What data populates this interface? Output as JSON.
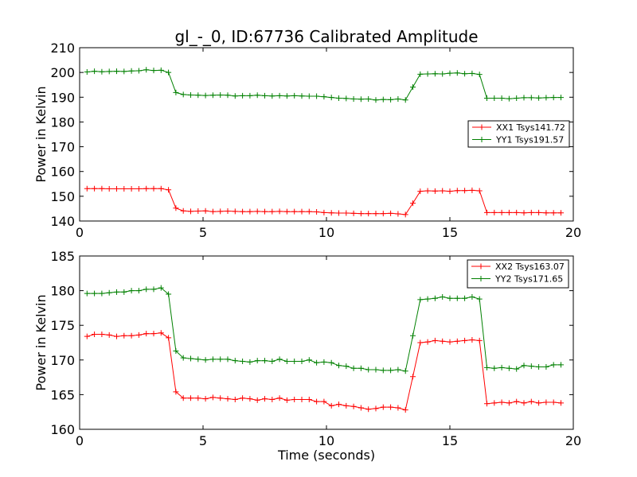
{
  "chart_data": [
    {
      "type": "line",
      "title": "gl_-_0, ID:67736 Calibrated Amplitude",
      "xlabel": "",
      "ylabel": "Power in Kelvin",
      "xlim": [
        0,
        20
      ],
      "ylim": [
        140,
        210
      ],
      "xticks": [
        "0",
        "5",
        "10",
        "15",
        "20"
      ],
      "yticks": [
        "140",
        "150",
        "160",
        "170",
        "180",
        "190",
        "200",
        "210"
      ],
      "grid": false,
      "legend_position": "right",
      "x": [
        0.3,
        0.6,
        0.9,
        1.2,
        1.5,
        1.8,
        2.1,
        2.4,
        2.7,
        3.0,
        3.3,
        3.6,
        3.9,
        4.2,
        4.5,
        4.8,
        5.1,
        5.4,
        5.7,
        6.0,
        6.3,
        6.6,
        6.9,
        7.2,
        7.5,
        7.8,
        8.1,
        8.4,
        8.7,
        9.0,
        9.3,
        9.6,
        9.9,
        10.2,
        10.5,
        10.8,
        11.1,
        11.4,
        11.7,
        12.0,
        12.3,
        12.6,
        12.9,
        13.2,
        13.5,
        13.8,
        14.1,
        14.4,
        14.7,
        15.0,
        15.3,
        15.6,
        15.9,
        16.2,
        16.5,
        16.8,
        17.1,
        17.4,
        17.7,
        18.0,
        18.3,
        18.6,
        18.9,
        19.2,
        19.5
      ],
      "series": [
        {
          "name": "XX1 Tsys141.72",
          "color": "#ff0000",
          "values": [
            153.1,
            153.1,
            153.1,
            153.0,
            153.0,
            153.0,
            153.0,
            153.0,
            153.1,
            153.1,
            153.1,
            152.6,
            145.2,
            144.1,
            143.9,
            144.0,
            144.1,
            143.8,
            143.9,
            144.0,
            143.9,
            143.8,
            143.8,
            143.9,
            143.8,
            143.8,
            143.9,
            143.8,
            143.8,
            143.8,
            143.8,
            143.7,
            143.4,
            143.3,
            143.2,
            143.2,
            143.1,
            143.0,
            143.0,
            143.0,
            143.0,
            143.1,
            142.9,
            142.6,
            147.2,
            152.0,
            152.2,
            152.1,
            152.2,
            152.0,
            152.3,
            152.3,
            152.4,
            152.2,
            143.4,
            143.4,
            143.4,
            143.4,
            143.4,
            143.3,
            143.4,
            143.4,
            143.3,
            143.3,
            143.3
          ]
        },
        {
          "name": "YY1 Tsys191.57",
          "color": "#008000",
          "values": [
            200.2,
            200.5,
            200.3,
            200.4,
            200.5,
            200.4,
            200.6,
            200.7,
            201.1,
            200.8,
            200.9,
            200.0,
            191.9,
            191.1,
            190.9,
            190.8,
            190.7,
            190.8,
            190.9,
            190.8,
            190.5,
            190.6,
            190.6,
            190.8,
            190.6,
            190.5,
            190.6,
            190.5,
            190.6,
            190.5,
            190.4,
            190.4,
            190.2,
            189.9,
            189.6,
            189.5,
            189.3,
            189.2,
            189.3,
            188.9,
            189.1,
            189.0,
            189.3,
            188.9,
            194.1,
            199.3,
            199.4,
            199.5,
            199.4,
            199.7,
            199.8,
            199.5,
            199.6,
            199.2,
            189.6,
            189.6,
            189.6,
            189.4,
            189.6,
            189.8,
            189.8,
            189.7,
            189.8,
            189.9,
            189.9
          ]
        }
      ]
    },
    {
      "type": "line",
      "title": "",
      "xlabel": "Time (seconds)",
      "ylabel": "Power in Kelvin",
      "xlim": [
        0,
        20
      ],
      "ylim": [
        160,
        185
      ],
      "xticks": [
        "0",
        "5",
        "10",
        "15",
        "20"
      ],
      "yticks": [
        "160",
        "165",
        "170",
        "175",
        "180",
        "185"
      ],
      "grid": false,
      "legend_position": "top-right",
      "x": [
        0.3,
        0.6,
        0.9,
        1.2,
        1.5,
        1.8,
        2.1,
        2.4,
        2.7,
        3.0,
        3.3,
        3.6,
        3.9,
        4.2,
        4.5,
        4.8,
        5.1,
        5.4,
        5.7,
        6.0,
        6.3,
        6.6,
        6.9,
        7.2,
        7.5,
        7.8,
        8.1,
        8.4,
        8.7,
        9.0,
        9.3,
        9.6,
        9.9,
        10.2,
        10.5,
        10.8,
        11.1,
        11.4,
        11.7,
        12.0,
        12.3,
        12.6,
        12.9,
        13.2,
        13.5,
        13.8,
        14.1,
        14.4,
        14.7,
        15.0,
        15.3,
        15.6,
        15.9,
        16.2,
        16.5,
        16.8,
        17.1,
        17.4,
        17.7,
        18.0,
        18.3,
        18.6,
        18.9,
        19.2,
        19.5
      ],
      "series": [
        {
          "name": "XX2 Tsys163.07",
          "color": "#ff0000",
          "values": [
            173.4,
            173.7,
            173.7,
            173.6,
            173.4,
            173.5,
            173.5,
            173.6,
            173.8,
            173.8,
            173.9,
            173.2,
            165.4,
            164.5,
            164.5,
            164.5,
            164.4,
            164.6,
            164.5,
            164.4,
            164.3,
            164.5,
            164.4,
            164.2,
            164.4,
            164.3,
            164.5,
            164.2,
            164.3,
            164.3,
            164.3,
            164.0,
            164.0,
            163.4,
            163.6,
            163.4,
            163.3,
            163.1,
            162.9,
            163.0,
            163.2,
            163.2,
            163.1,
            162.8,
            167.6,
            172.5,
            172.6,
            172.8,
            172.7,
            172.6,
            172.7,
            172.8,
            172.9,
            172.8,
            163.7,
            163.8,
            163.9,
            163.8,
            164.0,
            163.8,
            164.0,
            163.8,
            163.9,
            163.9,
            163.8
          ]
        },
        {
          "name": "YY2 Tsys171.65",
          "color": "#008000",
          "values": [
            179.6,
            179.6,
            179.6,
            179.7,
            179.8,
            179.8,
            180.0,
            180.0,
            180.2,
            180.2,
            180.4,
            179.5,
            171.3,
            170.3,
            170.2,
            170.1,
            170.0,
            170.1,
            170.1,
            170.1,
            169.9,
            169.8,
            169.7,
            169.9,
            169.9,
            169.8,
            170.1,
            169.8,
            169.8,
            169.8,
            170.0,
            169.6,
            169.7,
            169.6,
            169.2,
            169.1,
            168.8,
            168.8,
            168.6,
            168.6,
            168.5,
            168.5,
            168.6,
            168.4,
            173.5,
            178.7,
            178.8,
            178.9,
            179.1,
            178.9,
            178.9,
            178.9,
            179.1,
            178.8,
            168.9,
            168.8,
            168.9,
            168.8,
            168.7,
            169.2,
            169.1,
            169.0,
            169.0,
            169.3,
            169.3
          ]
        }
      ]
    }
  ]
}
